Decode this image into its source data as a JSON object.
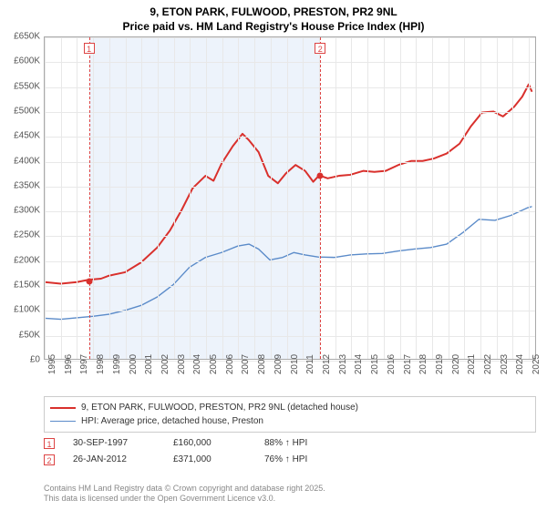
{
  "title_line1": "9, ETON PARK, FULWOOD, PRESTON, PR2 9NL",
  "title_line2": "Price paid vs. HM Land Registry's House Price Index (HPI)",
  "chart": {
    "type": "line",
    "x": {
      "min": 1995,
      "max": 2025.5,
      "ticks": [
        1995,
        1996,
        1997,
        1998,
        1999,
        2000,
        2001,
        2002,
        2003,
        2004,
        2005,
        2006,
        2007,
        2008,
        2009,
        2010,
        2011,
        2012,
        2013,
        2014,
        2015,
        2016,
        2017,
        2018,
        2019,
        2020,
        2021,
        2022,
        2023,
        2024,
        2025
      ]
    },
    "y": {
      "min": 0,
      "max": 650,
      "ticks": [
        0,
        50,
        100,
        150,
        200,
        250,
        300,
        350,
        400,
        450,
        500,
        550,
        600,
        650
      ],
      "prefix": "£",
      "suffix": "K"
    },
    "grid_color": "#e8e8e8",
    "background": "#ffffff",
    "shaded": {
      "from": 1997.75,
      "to": 2012.07,
      "color": "#e6eef9"
    },
    "series": [
      {
        "id": "price_paid",
        "label": "9, ETON PARK, FULWOOD, PRESTON, PR2 9NL (detached house)",
        "color": "#d9302c",
        "width": 2,
        "points": [
          [
            1995,
            155
          ],
          [
            1996,
            152
          ],
          [
            1997,
            155
          ],
          [
            1997.75,
            160
          ],
          [
            1998.5,
            162
          ],
          [
            1999,
            168
          ],
          [
            2000,
            175
          ],
          [
            2001,
            195
          ],
          [
            2002,
            225
          ],
          [
            2002.8,
            260
          ],
          [
            2003.5,
            300
          ],
          [
            2004.2,
            345
          ],
          [
            2005,
            370
          ],
          [
            2005.5,
            360
          ],
          [
            2006,
            395
          ],
          [
            2006.7,
            430
          ],
          [
            2007.3,
            455
          ],
          [
            2007.7,
            442
          ],
          [
            2008.3,
            418
          ],
          [
            2008.9,
            370
          ],
          [
            2009.5,
            355
          ],
          [
            2010,
            375
          ],
          [
            2010.6,
            392
          ],
          [
            2011.2,
            380
          ],
          [
            2011.7,
            358
          ],
          [
            2012.07,
            371
          ],
          [
            2012.6,
            365
          ],
          [
            2013.3,
            370
          ],
          [
            2014,
            372
          ],
          [
            2014.8,
            380
          ],
          [
            2015.5,
            378
          ],
          [
            2016.2,
            380
          ],
          [
            2017,
            392
          ],
          [
            2017.8,
            400
          ],
          [
            2018.5,
            400
          ],
          [
            2019.2,
            405
          ],
          [
            2020,
            415
          ],
          [
            2020.8,
            435
          ],
          [
            2021.5,
            470
          ],
          [
            2022.2,
            498
          ],
          [
            2022.9,
            500
          ],
          [
            2023.5,
            490
          ],
          [
            2024.2,
            510
          ],
          [
            2024.7,
            530
          ],
          [
            2025.1,
            555
          ],
          [
            2025.3,
            540
          ]
        ]
      },
      {
        "id": "hpi",
        "label": "HPI: Average price, detached house, Preston",
        "color": "#5b8bc9",
        "width": 1.4,
        "points": [
          [
            1995,
            82
          ],
          [
            1996,
            80
          ],
          [
            1997,
            83
          ],
          [
            1998,
            86
          ],
          [
            1999,
            90
          ],
          [
            2000,
            98
          ],
          [
            2001,
            108
          ],
          [
            2002,
            125
          ],
          [
            2003,
            150
          ],
          [
            2004,
            185
          ],
          [
            2005,
            205
          ],
          [
            2006,
            215
          ],
          [
            2007,
            228
          ],
          [
            2007.7,
            232
          ],
          [
            2008.3,
            222
          ],
          [
            2009,
            200
          ],
          [
            2009.8,
            205
          ],
          [
            2010.5,
            215
          ],
          [
            2011.2,
            210
          ],
          [
            2012,
            206
          ],
          [
            2013,
            205
          ],
          [
            2014,
            210
          ],
          [
            2015,
            212
          ],
          [
            2016,
            213
          ],
          [
            2017,
            218
          ],
          [
            2018,
            222
          ],
          [
            2019,
            225
          ],
          [
            2020,
            232
          ],
          [
            2021,
            255
          ],
          [
            2022,
            282
          ],
          [
            2023,
            280
          ],
          [
            2024,
            290
          ],
          [
            2025,
            305
          ],
          [
            2025.3,
            308
          ]
        ]
      }
    ],
    "sale_markers": [
      {
        "n": "1",
        "x": 1997.75,
        "y": 160
      },
      {
        "n": "2",
        "x": 2012.07,
        "y": 371
      }
    ]
  },
  "legend": {
    "series1": "9, ETON PARK, FULWOOD, PRESTON, PR2 9NL (detached house)",
    "series2": "HPI: Average price, detached house, Preston"
  },
  "sales": [
    {
      "n": "1",
      "date": "30-SEP-1997",
      "price": "£160,000",
      "pct": "88% ↑ HPI"
    },
    {
      "n": "2",
      "date": "26-JAN-2012",
      "price": "£371,000",
      "pct": "76% ↑ HPI"
    }
  ],
  "footer_line1": "Contains HM Land Registry data © Crown copyright and database right 2025.",
  "footer_line2": "This data is licensed under the Open Government Licence v3.0.",
  "colors": {
    "series1": "#d9302c",
    "series2": "#5b8bc9"
  }
}
